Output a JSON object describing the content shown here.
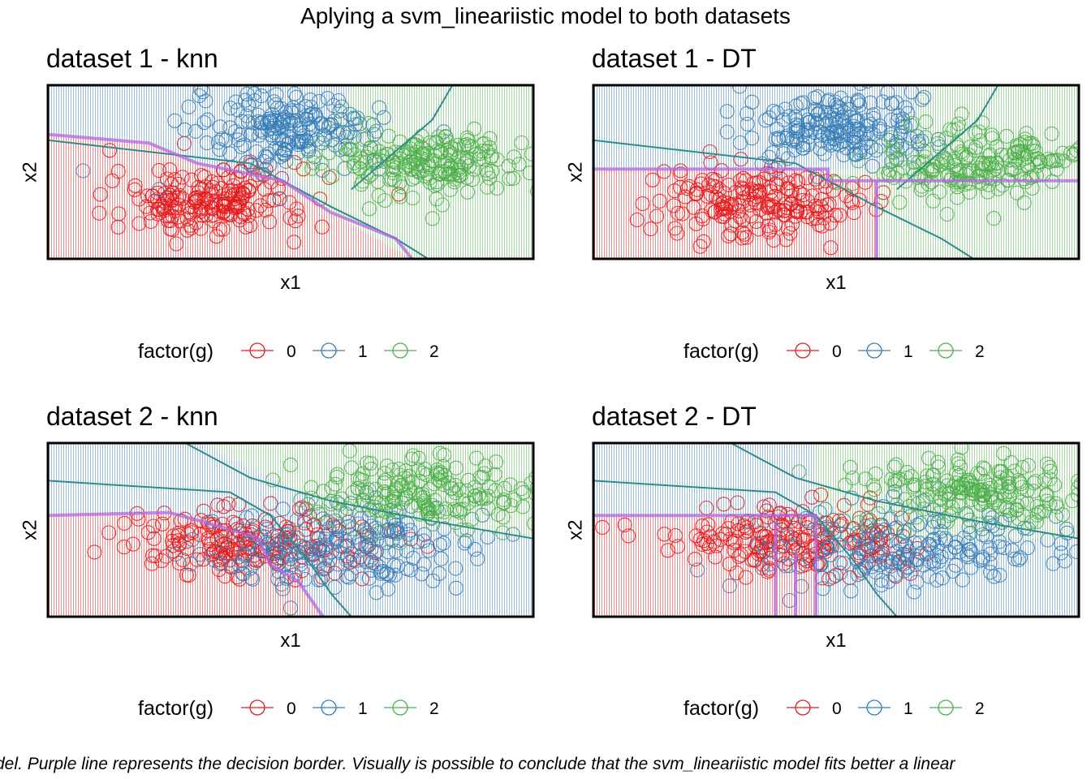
{
  "figure": {
    "title": "Aplying a svm_lineariistic model to both datasets",
    "caption": "del. Purple line represents the decision border. Visually is possible to conclude that the svm_lineariistic model fits better a linear"
  },
  "legend": {
    "title": "factor(g)",
    "labels": [
      "0",
      "1",
      "2"
    ]
  },
  "colors": {
    "class_0": "#e41a1c",
    "class_1": "#377eb8",
    "class_2": "#4daf4a",
    "decision_border": "#b266e0",
    "svm_line": "#2e8b8b"
  },
  "chart_data": [
    {
      "type": "scatter",
      "title": "dataset 1 - knn",
      "xlabel": "x1",
      "ylabel": "x2",
      "xlim": [
        -4,
        8
      ],
      "ylim": [
        -3,
        3
      ],
      "axis_ticks": false,
      "series": [
        {
          "name": "0",
          "center": [
            0,
            -1
          ],
          "spread": [
            1.2,
            0.6
          ]
        },
        {
          "name": "1",
          "center": [
            2,
            1.5
          ],
          "spread": [
            1.2,
            0.6
          ]
        },
        {
          "name": "2",
          "center": [
            5.5,
            0.3
          ],
          "spread": [
            1.2,
            0.6
          ]
        }
      ]
    },
    {
      "type": "scatter",
      "title": "dataset 1 - DT",
      "xlabel": "x1",
      "ylabel": "x2",
      "xlim": [
        -4,
        8
      ],
      "ylim": [
        -3,
        3
      ],
      "axis_ticks": false,
      "series": [
        {
          "name": "0",
          "center": [
            0,
            -1
          ],
          "spread": [
            1.2,
            0.6
          ]
        },
        {
          "name": "1",
          "center": [
            2,
            1.5
          ],
          "spread": [
            1.2,
            0.6
          ]
        },
        {
          "name": "2",
          "center": [
            5.5,
            0.3
          ],
          "spread": [
            1.2,
            0.6
          ]
        }
      ]
    },
    {
      "type": "scatter",
      "title": "dataset 2 - knn",
      "xlabel": "x1",
      "ylabel": "x2",
      "xlim": [
        -4,
        8
      ],
      "ylim": [
        -3,
        3
      ],
      "axis_ticks": false,
      "series": [
        {
          "name": "0",
          "center": [
            1,
            -0.4
          ],
          "spread": [
            1.5,
            0.6
          ]
        },
        {
          "name": "1",
          "center": [
            3.5,
            -0.6
          ],
          "spread": [
            1.8,
            0.7
          ]
        },
        {
          "name": "2",
          "center": [
            5.5,
            1.3
          ],
          "spread": [
            1.5,
            0.6
          ]
        }
      ]
    },
    {
      "type": "scatter",
      "title": "dataset 2 - DT",
      "xlabel": "x1",
      "ylabel": "x2",
      "xlim": [
        -4,
        8
      ],
      "ylim": [
        -3,
        3
      ],
      "axis_ticks": false,
      "series": [
        {
          "name": "0",
          "center": [
            1,
            -0.4
          ],
          "spread": [
            1.5,
            0.6
          ]
        },
        {
          "name": "1",
          "center": [
            3.5,
            -0.6
          ],
          "spread": [
            1.8,
            0.7
          ]
        },
        {
          "name": "2",
          "center": [
            5.5,
            1.3
          ],
          "spread": [
            1.5,
            0.6
          ]
        }
      ]
    }
  ]
}
